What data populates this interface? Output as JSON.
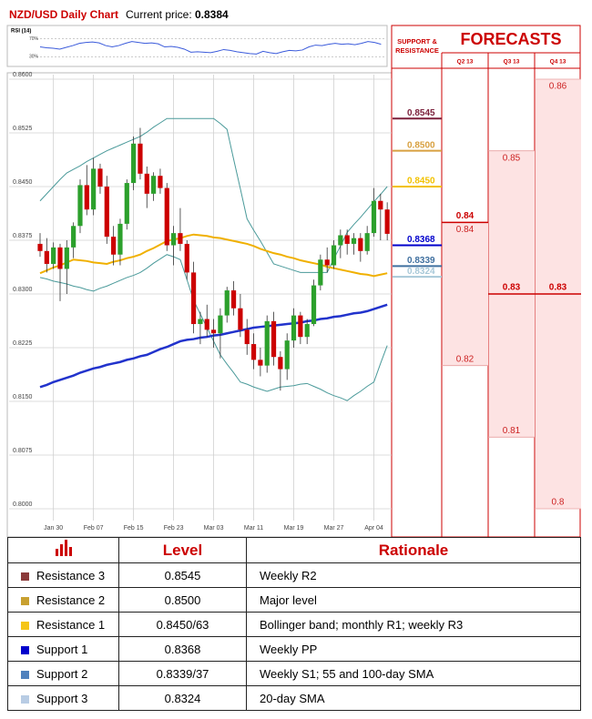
{
  "header": {
    "title": "NZD/USD Daily Chart",
    "price_label": "Current price:",
    "price": "0.8384"
  },
  "chart_data": [
    {
      "type": "candlestick",
      "categories": [
        null,
        null,
        "Jan 30",
        null,
        null,
        null,
        null,
        null,
        "Feb 07",
        null,
        null,
        null,
        null,
        null,
        "Feb 15",
        null,
        null,
        null,
        null,
        null,
        "Feb 23",
        null,
        null,
        null,
        null,
        null,
        "Mar 03",
        null,
        null,
        null,
        null,
        null,
        "Mar 11",
        null,
        null,
        null,
        null,
        null,
        "Mar 19",
        null,
        null,
        null,
        null,
        null,
        "Mar 27",
        null,
        null,
        null,
        null,
        null,
        "Apr 04",
        null,
        null
      ],
      "open": [
        0.837,
        0.836,
        0.8342,
        0.8365,
        0.8335,
        0.8365,
        0.8395,
        0.8452,
        0.8418,
        0.8475,
        0.845,
        0.838,
        0.8355,
        0.8398,
        0.8455,
        0.851,
        0.8468,
        0.844,
        0.8465,
        0.8448,
        0.8368,
        0.8385,
        0.837,
        0.833,
        0.8258,
        0.8265,
        0.825,
        0.8245,
        0.827,
        0.8305,
        0.828,
        0.825,
        0.823,
        0.8208,
        0.82,
        0.8262,
        0.8212,
        0.8195,
        0.8235,
        0.827,
        0.824,
        0.8258,
        0.8312,
        0.8348,
        0.834,
        0.8368,
        0.8382,
        0.837,
        0.8378,
        0.836,
        0.8385,
        0.843,
        0.8418
      ],
      "high": [
        0.8385,
        0.8378,
        0.8372,
        0.837,
        0.8375,
        0.84,
        0.846,
        0.848,
        0.849,
        0.8482,
        0.8465,
        0.8395,
        0.8405,
        0.846,
        0.852,
        0.8532,
        0.8478,
        0.847,
        0.8475,
        0.8455,
        0.8395,
        0.842,
        0.8375,
        0.8345,
        0.8275,
        0.8285,
        0.8265,
        0.828,
        0.831,
        0.8318,
        0.83,
        0.8265,
        0.8245,
        0.8225,
        0.827,
        0.8275,
        0.822,
        0.8245,
        0.828,
        0.8275,
        0.8265,
        0.832,
        0.8355,
        0.8365,
        0.8375,
        0.839,
        0.839,
        0.8385,
        0.8385,
        0.8395,
        0.8448,
        0.844,
        0.8428
      ],
      "low": [
        0.8352,
        0.833,
        0.8335,
        0.829,
        0.83,
        0.835,
        0.8385,
        0.841,
        0.841,
        0.844,
        0.837,
        0.834,
        0.834,
        0.839,
        0.8445,
        0.846,
        0.842,
        0.843,
        0.844,
        0.836,
        0.834,
        0.836,
        0.832,
        0.8245,
        0.823,
        0.824,
        0.8225,
        0.821,
        0.826,
        0.827,
        0.824,
        0.8215,
        0.8195,
        0.8185,
        0.819,
        0.82,
        0.8165,
        0.818,
        0.8225,
        0.823,
        0.823,
        0.8255,
        0.8305,
        0.833,
        0.8335,
        0.835,
        0.8355,
        0.8355,
        0.8345,
        0.8355,
        0.838,
        0.8375,
        0.8375
      ],
      "close": [
        0.836,
        0.8342,
        0.8365,
        0.8335,
        0.8365,
        0.8395,
        0.8452,
        0.8418,
        0.8475,
        0.845,
        0.838,
        0.8355,
        0.8398,
        0.8455,
        0.851,
        0.8468,
        0.844,
        0.8465,
        0.8448,
        0.8368,
        0.8385,
        0.837,
        0.833,
        0.8258,
        0.8265,
        0.825,
        0.8245,
        0.827,
        0.8305,
        0.828,
        0.825,
        0.823,
        0.8208,
        0.82,
        0.8262,
        0.8212,
        0.8195,
        0.8235,
        0.827,
        0.824,
        0.8258,
        0.8312,
        0.8348,
        0.834,
        0.8368,
        0.8382,
        0.837,
        0.8378,
        0.836,
        0.8385,
        0.843,
        0.8418,
        0.8384
      ],
      "up_color": "#2ca02c",
      "down_color": "#cc0000",
      "series": [
        {
          "color": "#4a9a9a",
          "values": [
            0.843,
            0.844,
            0.845,
            0.846,
            0.8469,
            0.8474,
            0.8479,
            0.8485,
            0.849,
            0.8495,
            0.85,
            0.8504,
            0.8508,
            0.8512,
            0.8516,
            0.852,
            0.8526,
            0.8533,
            0.8539,
            0.8545,
            0.8545,
            0.8545,
            0.8545,
            0.8545,
            0.8545,
            0.8545,
            0.8545,
            0.8538,
            0.853,
            0.8488,
            0.8447,
            0.8405,
            0.8389,
            0.8374,
            0.8358,
            0.8342,
            0.8339,
            0.8336,
            0.8333,
            0.833,
            0.833,
            0.833,
            0.833,
            0.833,
            0.8349,
            0.8367,
            0.8386,
            0.8397,
            0.8407,
            0.8418,
            0.8429,
            0.8439,
            0.845
          ]
        },
        {
          "color": "#4a9a9a",
          "values": [
            0.8323,
            0.8321,
            0.8318,
            0.8316,
            0.8314,
            0.8311,
            0.8309,
            0.8306,
            0.8304,
            0.8308,
            0.8311,
            0.8315,
            0.8319,
            0.8323,
            0.8326,
            0.833,
            0.8336,
            0.8343,
            0.8349,
            0.8355,
            0.8352,
            0.8348,
            0.832,
            0.8291,
            0.8272,
            0.8253,
            0.8234,
            0.8215,
            0.8202,
            0.819,
            0.8177,
            0.8174,
            0.817,
            0.8167,
            0.8164,
            0.8167,
            0.817,
            0.8171,
            0.8172,
            0.8174,
            0.8175,
            0.8171,
            0.8167,
            0.8162,
            0.8158,
            0.8155,
            0.8151,
            0.8158,
            0.8164,
            0.8171,
            0.8177,
            0.8203,
            0.8228
          ]
        },
        {
          "color": "#f0b000",
          "values": [
            0.8329,
            0.8333,
            0.8337,
            0.834,
            0.8344,
            0.8348,
            0.8347,
            0.8346,
            0.8344,
            0.8343,
            0.8342,
            0.8345,
            0.8347,
            0.835,
            0.8352,
            0.8355,
            0.836,
            0.8364,
            0.8369,
            0.8374,
            0.8376,
            0.8378,
            0.8381,
            0.8383,
            0.8382,
            0.8381,
            0.8379,
            0.8378,
            0.8376,
            0.8374,
            0.8372,
            0.837,
            0.8367,
            0.8363,
            0.836,
            0.8357,
            0.8355,
            0.8352,
            0.835,
            0.8347,
            0.8345,
            0.8343,
            0.8341,
            0.8338,
            0.8336,
            0.8334,
            0.8332,
            0.833,
            0.8328,
            0.8327,
            0.8325,
            0.8327,
            0.8329
          ]
        },
        {
          "color": "#2233cc",
          "values": [
            0.817,
            0.8173,
            0.8177,
            0.818,
            0.8183,
            0.8186,
            0.819,
            0.8193,
            0.8196,
            0.8198,
            0.8201,
            0.8203,
            0.8205,
            0.8208,
            0.821,
            0.8213,
            0.8215,
            0.8219,
            0.8223,
            0.8226,
            0.823,
            0.8234,
            0.8236,
            0.8237,
            0.8239,
            0.824,
            0.8242,
            0.8243,
            0.8245,
            0.8247,
            0.8249,
            0.8251,
            0.8253,
            0.8254,
            0.8255,
            0.8256,
            0.8257,
            0.8258,
            0.8259,
            0.826,
            0.8262,
            0.8263,
            0.8265,
            0.8266,
            0.8268,
            0.8269,
            0.8271,
            0.8273,
            0.8274,
            0.8276,
            0.8279,
            0.8282,
            0.8285
          ]
        }
      ],
      "ylim": [
        0.8,
        0.86
      ],
      "yticks": [
        {
          "value": 0.86,
          "label": "0.8600"
        },
        {
          "value": 0.8525,
          "label": "0.8525"
        },
        {
          "value": 0.845,
          "label": "0.8450"
        },
        {
          "value": 0.8375,
          "label": "0.8375"
        },
        {
          "value": 0.83,
          "label": "0.8300"
        },
        {
          "value": 0.8225,
          "label": "0.8225"
        },
        {
          "value": 0.815,
          "label": "0.8150"
        },
        {
          "value": 0.8075,
          "label": "0.8075"
        },
        {
          "value": 0.8,
          "label": "0.8000"
        }
      ],
      "grid": true
    },
    {
      "type": "line",
      "title": "RSI (14)",
      "color": "#3b5bdb",
      "values": [
        52,
        50,
        49,
        47,
        51,
        55,
        60,
        62,
        63,
        61,
        55,
        52,
        55,
        60,
        64,
        62,
        60,
        61,
        59,
        52,
        53,
        51,
        47,
        40,
        41,
        40,
        39,
        42,
        46,
        44,
        41,
        39,
        37,
        36,
        42,
        39,
        37,
        41,
        44,
        43,
        45,
        52,
        56,
        55,
        58,
        60,
        58,
        59,
        57,
        60,
        64,
        62,
        58
      ],
      "ylim": [
        10,
        90
      ],
      "yticks": [
        {
          "value": 70,
          "label": "70%"
        },
        {
          "value": 30,
          "label": "30%"
        }
      ]
    },
    {
      "type": "range",
      "title": "FORECASTS",
      "categories": [
        "Q2 13",
        "Q3 13",
        "Q4 13"
      ],
      "low": [
        0.82,
        0.81,
        0.8
      ],
      "high": [
        0.84,
        0.85,
        0.86
      ],
      "median": [
        0.84,
        0.83,
        0.83
      ],
      "color": "#fde3e3",
      "median_color": "#cc0000",
      "ylim": [
        0.8,
        0.86
      ]
    },
    {
      "type": "levels",
      "title": "SUPPORT & RESISTANCE",
      "values": [
        0.8545,
        0.85,
        0.845,
        0.8368,
        0.8339,
        0.8324
      ],
      "value_labels": [
        "0.8545",
        "0.8500",
        "0.8450",
        "0.8368",
        "0.8339",
        "0.8324"
      ],
      "colors": [
        "#7a1f3a",
        "#d8a040",
        "#f2c200",
        "#0000cc",
        "#3f6f9f",
        "#a8c8d8"
      ],
      "ylim": [
        0.8,
        0.86
      ]
    }
  ],
  "table": {
    "header": [
      "Level",
      "Rationale"
    ],
    "rows": [
      [
        "Resistance 3",
        "0.8545",
        "Weekly R2"
      ],
      [
        "Resistance 2",
        "0.8500",
        "Major level"
      ],
      [
        "Resistance 1",
        "0.8450/63",
        "Bollinger band; monthly R1; weekly R3"
      ],
      [
        "Support 1",
        "0.8368",
        "Weekly PP"
      ],
      [
        "Support 2",
        "0.8339/37",
        "Weekly S1; 55 and 100-day SMA"
      ],
      [
        "Support 3",
        "0.8324",
        "20-day SMA"
      ]
    ],
    "colors": [
      "#8b3a3a",
      "#c8a030",
      "#f5c518",
      "#0000cc",
      "#4f81bd",
      "#b8cce4"
    ]
  }
}
